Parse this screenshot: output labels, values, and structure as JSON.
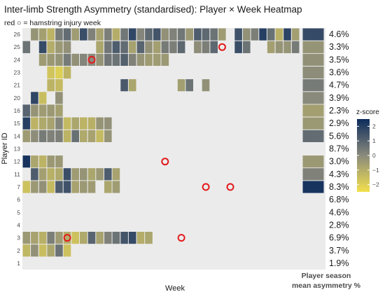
{
  "chart_data": {
    "type": "heatmap",
    "title": "Inter-limb Strength Asymmetry (standardised): Player × Week Heatmap",
    "subtitle": "red ○ = hamstring injury week",
    "xlabel": "Week",
    "ylabel": "Player ID",
    "x_tick_labels": "none",
    "weeks": 34,
    "players": [
      "1",
      "2",
      "3",
      "4",
      "5",
      "6",
      "7",
      "11",
      "12",
      "13",
      "14",
      "15",
      "16",
      "20",
      "21",
      "23",
      "24",
      "25",
      "26"
    ],
    "legend": {
      "title": "z-score",
      "ticks": [
        2,
        1,
        0,
        -1,
        -2
      ],
      "range": [
        -2.5,
        2.5
      ],
      "colors": {
        "low": "#f2e04d",
        "mid": "#8a8a7c",
        "high": "#0d2c5c"
      }
    },
    "side_panel": {
      "title_line1": "Player season",
      "title_line2": "mean asymmetry %",
      "values": [
        {
          "player": "26",
          "label": "4.6%",
          "z": 1.7
        },
        {
          "player": "25",
          "label": "3.3%",
          "z": -0.3
        },
        {
          "player": "24",
          "label": "3.5%",
          "z": -0.2
        },
        {
          "player": "23",
          "label": "3.6%",
          "z": -0.1
        },
        {
          "player": "21",
          "label": "4.7%",
          "z": 0.4
        },
        {
          "player": "20",
          "label": "3.9%",
          "z": 0.0
        },
        {
          "player": "16",
          "label": "2.3%",
          "z": -0.6
        },
        {
          "player": "15",
          "label": "2.9%",
          "z": -0.4
        },
        {
          "player": "14",
          "label": "5.6%",
          "z": 0.8
        },
        {
          "player": "13",
          "label": "8.7%",
          "z": null
        },
        {
          "player": "12",
          "label": "3.0%",
          "z": -0.4
        },
        {
          "player": "11",
          "label": "4.3%",
          "z": 0.2
        },
        {
          "player": "7",
          "label": "8.3%",
          "z": 2.3
        },
        {
          "player": "6",
          "label": "6.8%",
          "z": null
        },
        {
          "player": "5",
          "label": "4.6%",
          "z": null
        },
        {
          "player": "4",
          "label": "2.8%",
          "z": null
        },
        {
          "player": "3",
          "label": "6.9%",
          "z": null
        },
        {
          "player": "2",
          "label": "3.7%",
          "z": null
        },
        {
          "player": "1",
          "label": "1.9%",
          "z": null
        }
      ]
    },
    "rows": {
      "26": [
        "",
        "-0.3",
        "-0.6",
        "-1.2",
        "0.4",
        "0.8",
        "-0.5",
        "1.6",
        "0.2",
        "-0.7",
        "0.3",
        "-1.0",
        "0.5",
        "1.8",
        "0.1",
        "0.9",
        "1.4",
        "-0.2",
        "0.2",
        "0.5",
        "-0.4",
        "1.2",
        "0.9",
        "0.6",
        "-0.5",
        "",
        "1.5",
        "-0.2",
        "0.3",
        "2.0",
        "0.7",
        "-1.1",
        "1.9",
        "-0.6"
      ],
      "25": [
        "0.6",
        "",
        "1.7",
        "-1.0",
        "-0.4",
        "-0.2",
        "",
        "",
        "",
        "-0.8",
        "0.5",
        "1.2",
        "0.8",
        "-0.7",
        "1.0",
        "-0.2",
        "-0.6",
        "0.4",
        "0.3",
        "0.9",
        "",
        "-0.1",
        "0.3",
        "0.9",
        "",
        "",
        "1.6",
        "0.6",
        "",
        "",
        "-0.6",
        "-0.3",
        "-0.3",
        "0.4"
      ],
      "24": [
        "",
        "",
        "-0.5",
        "-0.4",
        "-0.3",
        "0.4",
        "-0.2",
        "0.1",
        "0.0",
        "-0.3",
        "0.5",
        "0.6",
        "1.1",
        "0.2",
        "-0.3",
        "-0.5",
        "-0.5",
        "-0.4",
        "",
        "",
        "",
        "",
        "",
        "",
        "",
        "",
        "",
        "",
        "",
        "",
        "",
        "",
        "",
        ""
      ],
      "23": [
        "",
        "",
        "",
        "-1.7",
        "-2.0",
        "-1.2",
        "",
        "",
        "",
        "",
        "",
        "",
        "",
        "",
        "",
        "",
        "",
        "",
        "",
        "",
        "",
        "",
        "",
        "",
        "",
        "",
        "",
        "",
        "",
        "",
        "",
        "",
        "",
        ""
      ],
      "21": [
        "",
        "",
        "",
        "-1.2",
        "-1.4",
        "",
        "",
        "",
        "",
        "",
        "",
        "",
        "1.3",
        "-0.8",
        "",
        "",
        "",
        "",
        "",
        "-0.6",
        "0.6",
        "",
        "-0.2",
        "",
        "",
        "",
        "",
        "",
        "",
        "",
        "",
        "",
        "",
        ""
      ],
      "20": [
        "",
        "1.8",
        "-1.5",
        "",
        "-0.2",
        "",
        "",
        "",
        "",
        "",
        "",
        "",
        "",
        "",
        "",
        "",
        "",
        "",
        "",
        "",
        "",
        "",
        "",
        "",
        "",
        "",
        "",
        "",
        "",
        "",
        "",
        "",
        "",
        ""
      ],
      "16": [
        "1.0",
        "-0.3",
        "-0.5",
        "-0.4",
        "-0.6",
        "",
        "",
        "",
        "",
        "",
        "",
        "",
        "",
        "",
        "",
        "",
        "",
        "",
        "",
        "",
        "",
        "",
        "",
        "",
        "",
        "",
        "",
        "",
        "",
        "",
        "",
        "",
        "",
        ""
      ],
      "15": [
        "2.0",
        "-1.2",
        "-0.9",
        "-0.7",
        "0.1",
        "-1.4",
        "-0.8",
        "-1.2",
        "-1.1",
        "-0.3",
        "-0.2",
        "",
        "",
        "",
        "",
        "",
        "",
        "",
        "",
        "",
        "",
        "",
        "",
        "",
        "",
        "",
        "",
        "",
        "",
        "",
        "",
        "",
        "",
        ""
      ],
      "14": [
        "-0.5",
        "-0.1",
        "0.4",
        "0.2",
        "0.3",
        "-1.2",
        "0.7",
        "-0.9",
        "-0.7",
        "-1.4",
        "-0.3",
        "",
        "",
        "",
        "",
        "",
        "",
        "",
        "",
        "",
        "",
        "",
        "",
        "",
        "",
        "",
        "",
        "",
        "",
        "",
        "",
        "",
        "",
        ""
      ],
      "13": [
        "",
        "",
        "",
        "",
        "",
        "",
        "",
        "",
        "",
        "",
        "",
        "",
        "",
        "",
        "",
        "",
        "",
        "",
        "",
        "",
        "",
        "",
        "",
        "",
        "",
        "",
        "",
        "",
        "",
        "",
        "",
        "",
        "",
        ""
      ],
      "12": [
        "2.3",
        "-0.8",
        "-1.2",
        "-0.4",
        "-0.4",
        "",
        "",
        "",
        "",
        "",
        "",
        "",
        "",
        "",
        "",
        "",
        "",
        "",
        "",
        "",
        "",
        "",
        "",
        "",
        "",
        "",
        "",
        "",
        "",
        "",
        "",
        "",
        "",
        ""
      ],
      "11": [
        "",
        "1.2",
        "-0.6",
        "-1.1",
        "-0.9",
        "1.6",
        "-0.5",
        "-0.3",
        "-0.8",
        "-0.4",
        "1.2",
        "-0.7",
        "",
        "",
        "",
        "",
        "",
        "",
        "",
        "",
        "",
        "",
        "",
        "",
        "",
        "",
        "",
        "",
        "",
        "",
        "",
        "",
        "",
        ""
      ],
      "7": [
        "-1.6",
        "-0.4",
        "-0.2",
        "-1.4",
        "1.2",
        "1.5",
        "-0.7",
        "-0.4",
        "-0.5",
        "",
        "-0.8",
        "-0.5",
        "",
        "",
        "",
        "",
        "",
        "",
        "",
        "",
        "",
        "",
        "",
        "",
        "",
        "",
        "",
        "",
        "",
        "",
        "",
        "",
        "",
        ""
      ],
      "6": [
        "",
        "",
        "",
        "",
        "",
        "",
        "",
        "",
        "",
        "",
        "",
        "",
        "",
        "",
        "",
        "",
        "",
        "",
        "",
        "",
        "",
        "",
        "",
        "",
        "",
        "",
        "",
        "",
        "",
        "",
        "",
        "",
        "",
        ""
      ],
      "5": [
        "",
        "",
        "",
        "",
        "",
        "",
        "",
        "",
        "",
        "",
        "",
        "",
        "",
        "",
        "",
        "",
        "",
        "",
        "",
        "",
        "",
        "",
        "",
        "",
        "",
        "",
        "",
        "",
        "",
        "",
        "",
        "",
        "",
        ""
      ],
      "4": [
        "",
        "",
        "",
        "",
        "",
        "",
        "",
        "",
        "",
        "",
        "",
        "",
        "",
        "",
        "",
        "",
        "",
        "",
        "",
        "",
        "",
        "",
        "",
        "",
        "",
        "",
        "",
        "",
        "",
        "",
        "",
        "",
        "",
        ""
      ],
      "3": [
        "-0.4",
        "-0.7",
        "-1.1",
        "0.3",
        "-0.5",
        "-1.0",
        "-1.6",
        "-0.9",
        "1.0",
        "-0.7",
        "0.2",
        "0.6",
        "1.4",
        "1.7",
        "-1.0",
        "-0.8",
        "",
        "",
        "",
        "",
        "",
        "",
        "",
        "",
        "",
        "",
        "",
        "",
        "",
        "",
        "",
        "",
        "",
        ""
      ],
      "2": [
        "-1.3",
        "-0.2",
        "-1.5",
        "-0.8",
        "0.6",
        "-1.6",
        "",
        "",
        "",
        "",
        "",
        "",
        "",
        "",
        "",
        "",
        "",
        "",
        "",
        "",
        "",
        "",
        "",
        "",
        "",
        "",
        "",
        "",
        "",
        "",
        "",
        "",
        "",
        ""
      ],
      "1": [
        "",
        "",
        "",
        "",
        "",
        "",
        "",
        "",
        "",
        "",
        "",
        "",
        "",
        "",
        "",
        "",
        "",
        "",
        "",
        "",
        "",
        "",
        "",
        "",
        "",
        "",
        "",
        "",
        "",
        "",
        "",
        "",
        "",
        ""
      ]
    },
    "injuries": [
      {
        "player": "25",
        "week": 25
      },
      {
        "player": "24",
        "week": 9
      },
      {
        "player": "12",
        "week": 18
      },
      {
        "player": "7",
        "week": 23
      },
      {
        "player": "7",
        "week": 26
      },
      {
        "player": "3",
        "week": 6
      },
      {
        "player": "3",
        "week": 20
      }
    ]
  }
}
